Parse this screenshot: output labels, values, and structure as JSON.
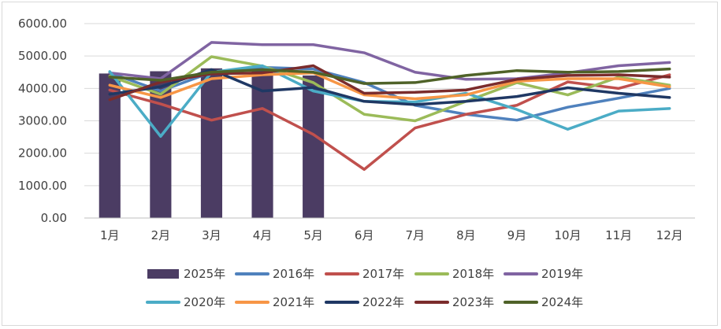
{
  "chart_data": {
    "type": "bar",
    "title": "",
    "xlabel": "",
    "ylabel": "",
    "ylim": [
      0,
      6000
    ],
    "y_ticks": [
      "0.00",
      "1000.00",
      "2000.00",
      "3000.00",
      "4000.00",
      "5000.00",
      "6000.00"
    ],
    "categories": [
      "1月",
      "2月",
      "3月",
      "4月",
      "5月",
      "6月",
      "7月",
      "8月",
      "9月",
      "10月",
      "11月",
      "12月"
    ],
    "grid": true,
    "legend_position": "bottom",
    "series": [
      {
        "name": "2025年",
        "kind": "bar",
        "color": "#4b3c63",
        "values": [
          4460,
          4530,
          4620,
          4610,
          4400,
          null,
          null,
          null,
          null,
          null,
          null,
          null
        ]
      },
      {
        "name": "2016年",
        "kind": "line",
        "color": "#4f81bd",
        "values": [
          4480,
          3920,
          4500,
          4650,
          4600,
          4180,
          3480,
          3200,
          3020,
          3420,
          3700,
          4000
        ]
      },
      {
        "name": "2017年",
        "kind": "line",
        "color": "#c0504d",
        "values": [
          3950,
          3520,
          3020,
          3380,
          2580,
          1500,
          2780,
          3200,
          3480,
          4200,
          4000,
          4420
        ]
      },
      {
        "name": "2018年",
        "kind": "line",
        "color": "#9bbb59",
        "values": [
          4380,
          3820,
          4980,
          4690,
          4180,
          3200,
          3000,
          3600,
          4180,
          3800,
          4350,
          4100
        ]
      },
      {
        "name": "2019年",
        "kind": "line",
        "color": "#8064a2",
        "values": [
          4480,
          4300,
          5420,
          5350,
          5350,
          5100,
          4500,
          4280,
          4300,
          4480,
          4700,
          4800
        ]
      },
      {
        "name": "2020年",
        "kind": "line",
        "color": "#4bacc6",
        "values": [
          4520,
          2520,
          4500,
          4700,
          3920,
          3600,
          3580,
          3850,
          3350,
          2740,
          3300,
          3380
        ]
      },
      {
        "name": "2021年",
        "kind": "line",
        "color": "#f79646",
        "values": [
          4100,
          3720,
          4300,
          4420,
          4480,
          3800,
          3680,
          3800,
          4220,
          4300,
          4300,
          4050
        ]
      },
      {
        "name": "2022年",
        "kind": "line",
        "color": "#1f3864",
        "values": [
          3820,
          4050,
          4580,
          3920,
          4030,
          3600,
          3500,
          3600,
          3750,
          4020,
          3850,
          3720
        ]
      },
      {
        "name": "2023年",
        "kind": "line",
        "color": "#7b2c2c",
        "values": [
          3650,
          4200,
          4450,
          4480,
          4700,
          3850,
          3880,
          3950,
          4280,
          4400,
          4420,
          4350
        ]
      },
      {
        "name": "2024年",
        "kind": "line",
        "color": "#4f6228",
        "values": [
          4350,
          4250,
          4500,
          4580,
          4500,
          4150,
          4180,
          4400,
          4550,
          4500,
          4520,
          4600
        ]
      }
    ]
  }
}
